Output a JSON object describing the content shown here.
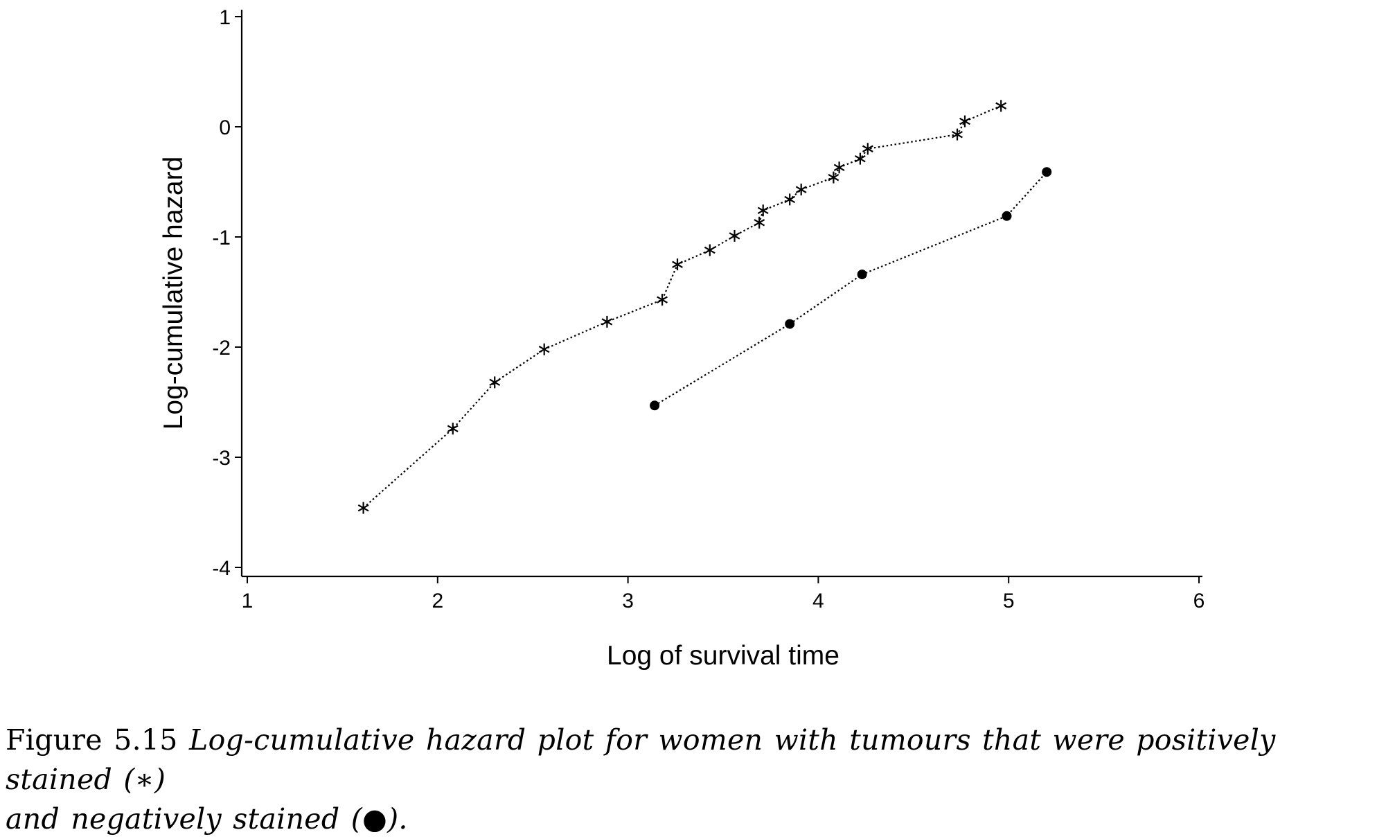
{
  "chart_data": {
    "type": "line",
    "title": "",
    "xlabel": "Log of survival time",
    "ylabel": "Log-cumulative hazard",
    "xlim": [
      1,
      6
    ],
    "ylim": [
      -4,
      1
    ],
    "xticks": [
      "1",
      "2",
      "3",
      "4",
      "5",
      "6"
    ],
    "yticks": [
      "1",
      "0",
      "-1",
      "-2",
      "-3",
      "-4"
    ],
    "grid": false,
    "legend": "none",
    "series": [
      {
        "name": "Positively stained",
        "marker": "asterisk",
        "line_style": "dotted",
        "x": [
          1.61,
          2.08,
          2.3,
          2.56,
          2.89,
          3.18,
          3.26,
          3.43,
          3.56,
          3.69,
          3.71,
          3.85,
          3.91,
          4.08,
          4.11,
          4.22,
          4.26,
          4.73,
          4.77,
          4.96
        ],
        "y": [
          -3.46,
          -2.74,
          -2.32,
          -2.02,
          -1.77,
          -1.57,
          -1.25,
          -1.12,
          -0.99,
          -0.87,
          -0.76,
          -0.66,
          -0.57,
          -0.46,
          -0.37,
          -0.29,
          -0.2,
          -0.07,
          0.05,
          0.19
        ]
      },
      {
        "name": "Negatively stained",
        "marker": "filled-circle",
        "line_style": "dotted",
        "x": [
          3.14,
          3.85,
          4.23,
          4.99,
          5.2
        ],
        "y": [
          -2.53,
          -1.79,
          -1.34,
          -0.81,
          -0.41
        ]
      }
    ]
  },
  "caption": {
    "label": "Figure 5.15",
    "line1_italic": "Log-cumulative hazard plot for women with tumours that were positively stained (∗)",
    "line2_italic": "and negatively stained (●)."
  }
}
